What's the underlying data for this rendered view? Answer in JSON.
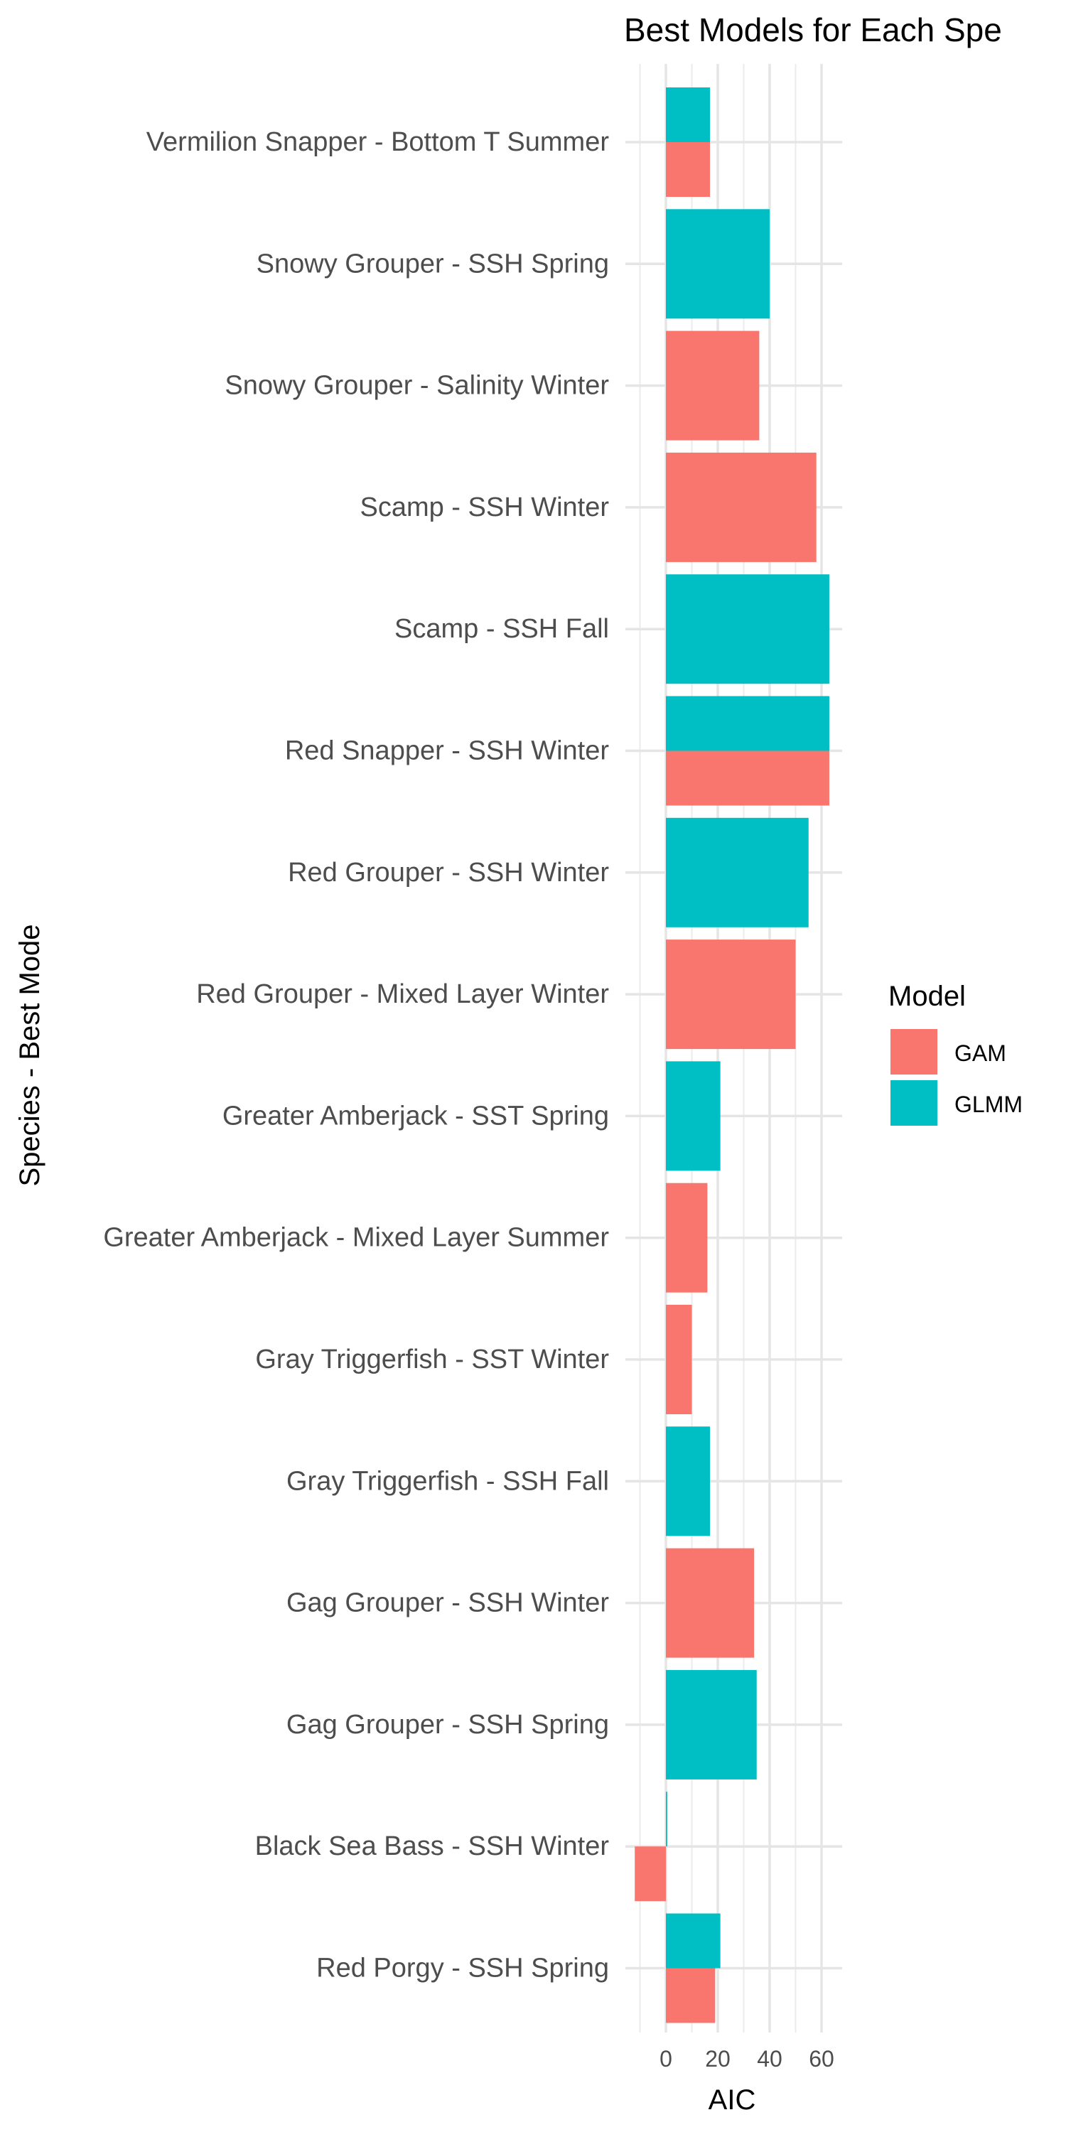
{
  "chart_data": {
    "type": "bar",
    "orientation": "horizontal",
    "title": "Best Models for Each Spe",
    "xlabel": "AIC",
    "ylabel": "Species - Best Mode",
    "xlim": [
      -12,
      68
    ],
    "xticks": [
      0,
      20,
      40,
      60
    ],
    "grid": true,
    "legend": {
      "title": "Model",
      "placement": "right"
    },
    "categories": [
      "Vermilion Snapper - Bottom T Summer",
      "Snowy Grouper  - SSH Spring",
      "Snowy Grouper  - Salinity Winter",
      "Scamp - SSH Winter",
      "Scamp - SSH Fall",
      "Red Snapper - SSH Winter",
      "Red Grouper - SSH Winter",
      "Red Grouper - Mixed Layer Winter",
      "Greater Amberjack - SST Spring",
      "Greater Amberjack - Mixed Layer Summer",
      "Gray Triggerfish - SST Winter",
      "Gray Triggerfish - SSH Fall",
      "Gag Grouper - SSH Winter",
      "Gag Grouper - SSH Spring",
      "Black Sea Bass - SSH Winter",
      "Red Porgy - SSH Spring"
    ],
    "series": [
      {
        "name": "GAM",
        "color": "#F8766D",
        "values": [
          17,
          null,
          36,
          58,
          null,
          63,
          null,
          50,
          null,
          16,
          10,
          null,
          34,
          null,
          -12,
          19
        ]
      },
      {
        "name": "GLMM",
        "color": "#00BFC4",
        "values": [
          17,
          40,
          null,
          null,
          63,
          63,
          55,
          null,
          21,
          null,
          null,
          17,
          null,
          35,
          0.5,
          21
        ]
      }
    ]
  }
}
